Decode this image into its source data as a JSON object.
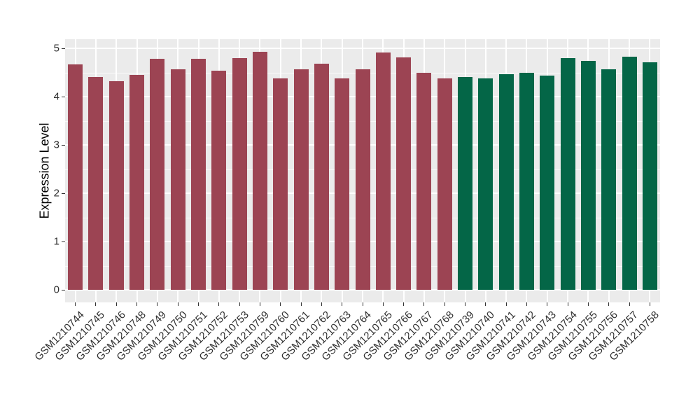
{
  "chart_data": {
    "type": "bar",
    "title": "",
    "xlabel": "",
    "ylabel": "Expression Level",
    "ylim": [
      0,
      5.18
    ],
    "ytick_labels": [
      "0",
      "1",
      "2",
      "3",
      "4",
      "5"
    ],
    "grid": "on",
    "legend_position": "none",
    "x_label_angle": 45,
    "categories": [
      "GSM1210744",
      "GSM1210745",
      "GSM1210746",
      "GSM1210748",
      "GSM1210749",
      "GSM1210750",
      "GSM1210751",
      "GSM1210752",
      "GSM1210753",
      "GSM1210759",
      "GSM1210760",
      "GSM1210761",
      "GSM1210762",
      "GSM1210763",
      "GSM1210764",
      "GSM1210765",
      "GSM1210766",
      "GSM1210767",
      "GSM1210768",
      "GSM1210739",
      "GSM1210740",
      "GSM1210741",
      "GSM1210742",
      "GSM1210743",
      "GSM1210754",
      "GSM1210755",
      "GSM1210756",
      "GSM1210757",
      "GSM1210758"
    ],
    "values": [
      4.66,
      4.41,
      4.32,
      4.45,
      4.78,
      4.56,
      4.78,
      4.54,
      4.8,
      4.93,
      4.38,
      4.56,
      4.68,
      4.37,
      4.57,
      4.91,
      4.81,
      4.49,
      4.37,
      4.4,
      4.38,
      4.46,
      4.5,
      4.44,
      4.79,
      4.74,
      4.57,
      4.83,
      4.71
    ],
    "bar_groups": [
      "maroon",
      "maroon",
      "maroon",
      "maroon",
      "maroon",
      "maroon",
      "maroon",
      "maroon",
      "maroon",
      "maroon",
      "maroon",
      "maroon",
      "maroon",
      "maroon",
      "maroon",
      "maroon",
      "maroon",
      "maroon",
      "maroon",
      "green",
      "green",
      "green",
      "green",
      "green",
      "green",
      "green",
      "green",
      "green",
      "green"
    ],
    "colors": {
      "maroon": "#9C4453",
      "green": "#046647"
    },
    "panel_background": "#EBEBEB",
    "gridline_color": "#FFFFFF"
  }
}
